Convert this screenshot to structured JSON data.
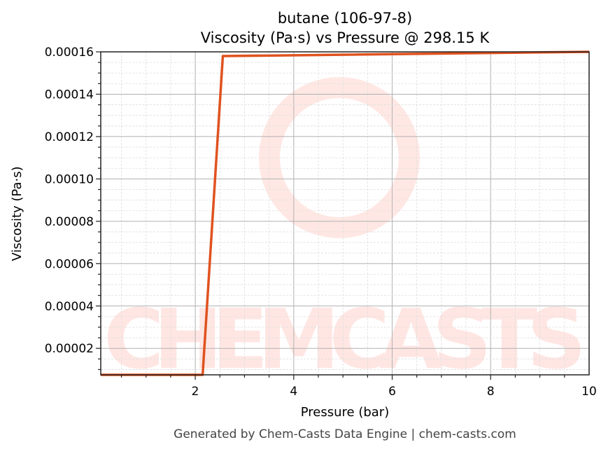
{
  "chart_data": {
    "type": "line",
    "title": "butane (106-97-8)",
    "subtitle": "Viscosity (Pa·s) vs Pressure @ 298.15 K",
    "xlabel": "Pressure (bar)",
    "ylabel": "Viscosity (Pa·s)",
    "xlim": [
      0.08,
      10
    ],
    "ylim": [
      7.5e-06,
      0.00016
    ],
    "xticks": [
      2,
      4,
      6,
      8,
      10
    ],
    "xtick_labels": [
      "2",
      "4",
      "6",
      "8",
      "10"
    ],
    "yticks": [
      2e-05,
      4e-05,
      6e-05,
      8e-05,
      0.0001,
      0.00012,
      0.00014,
      0.00016
    ],
    "ytick_labels": [
      "0.00002",
      "0.00004",
      "0.00006",
      "0.00008",
      "0.00010",
      "0.00012",
      "0.00014",
      "0.00016"
    ],
    "grid": true,
    "series": [
      {
        "color": "#e0521f",
        "x": [
          0.08,
          2.15,
          2.56,
          10
        ],
        "y": [
          7.5e-06,
          7.5e-06,
          0.000158,
          0.00016
        ]
      }
    ],
    "watermark": "CHEMCASTS",
    "footer": "Generated by Chem-Casts Data Engine | chem-casts.com"
  }
}
